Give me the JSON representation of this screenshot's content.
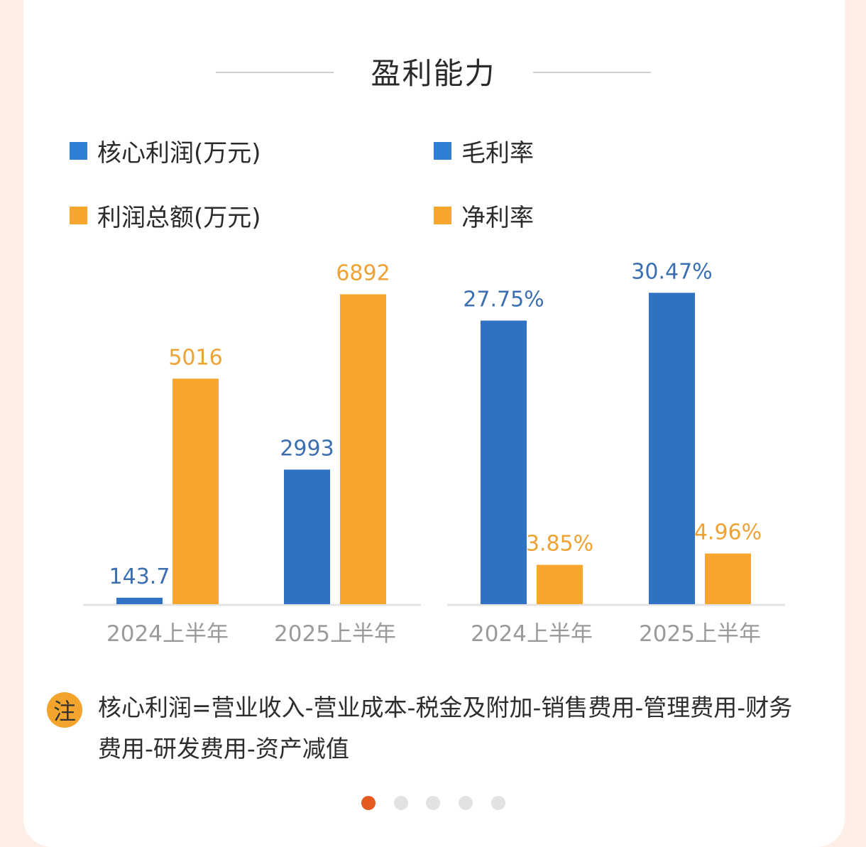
{
  "title": "盈利能力",
  "legend": {
    "items": [
      {
        "label": "核心利润(万元)",
        "color": "#2f7fd6"
      },
      {
        "label": "毛利率",
        "color": "#2f7fd6"
      },
      {
        "label": "利润总额(万元)",
        "color": "#f6a52d"
      },
      {
        "label": "净利率",
        "color": "#f6a52d"
      }
    ]
  },
  "colors": {
    "blue": "#2f72c4",
    "orange": "#f6a52d",
    "blue_label": "#3b6fb0",
    "orange_label": "#eea233",
    "axis": "#e3e3e3",
    "tick": "#9a9a9a",
    "dot_active": "#e55a1f",
    "dot_inactive": "#e2e2e2"
  },
  "chart_data": [
    {
      "type": "bar",
      "categories": [
        "2024上半年",
        "2025上半年"
      ],
      "series": [
        {
          "name": "核心利润(万元)",
          "values": [
            143.7,
            2993
          ],
          "labels": [
            "143.7",
            "2993"
          ]
        },
        {
          "name": "利润总额(万元)",
          "values": [
            5016,
            6892
          ],
          "labels": [
            "5016",
            "6892"
          ]
        }
      ],
      "ylim": [
        0,
        7500
      ],
      "grid": false
    },
    {
      "type": "bar",
      "categories": [
        "2024上半年",
        "2025上半年"
      ],
      "series": [
        {
          "name": "毛利率",
          "values": [
            27.75,
            30.47
          ],
          "labels": [
            "27.75%",
            "30.47%"
          ]
        },
        {
          "name": "净利率",
          "values": [
            3.85,
            4.96
          ],
          "labels": [
            "3.85%",
            "4.96%"
          ]
        }
      ],
      "ylim": [
        0,
        33
      ],
      "grid": false
    }
  ],
  "note": {
    "badge": "注",
    "text": "核心利润=营业收入-营业成本-税金及附加-销售费用-管理费用-财务费用-研发费用-资产减值"
  },
  "pagination": {
    "total": 5,
    "active": 0
  }
}
